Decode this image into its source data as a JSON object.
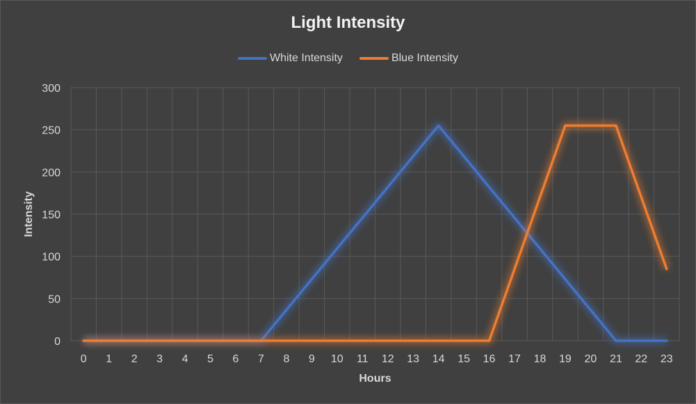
{
  "chart_data": {
    "type": "line",
    "title": "Light Intensity",
    "xlabel": "Hours",
    "ylabel": "Intensity",
    "x": [
      0,
      1,
      2,
      3,
      4,
      5,
      6,
      7,
      8,
      9,
      10,
      11,
      12,
      13,
      14,
      15,
      16,
      17,
      18,
      19,
      20,
      21,
      22,
      23
    ],
    "ylim": [
      0,
      300
    ],
    "yticks": [
      0,
      50,
      100,
      150,
      200,
      250,
      300
    ],
    "grid": true,
    "legend_position": "top",
    "series": [
      {
        "name": "White Intensity",
        "color": "#4472c4",
        "values": [
          0,
          0,
          0,
          0,
          0,
          0,
          0,
          0,
          36.4,
          72.9,
          109.3,
          145.7,
          182.1,
          218.6,
          255,
          218.6,
          182.1,
          145.7,
          109.3,
          72.9,
          36.4,
          0,
          0,
          0
        ]
      },
      {
        "name": "Blue Intensity",
        "color": "#ed7d31",
        "values": [
          0,
          0,
          0,
          0,
          0,
          0,
          0,
          0,
          0,
          0,
          0,
          0,
          0,
          0,
          0,
          0,
          0,
          85,
          170,
          255,
          255,
          255,
          170,
          85
        ]
      }
    ]
  }
}
